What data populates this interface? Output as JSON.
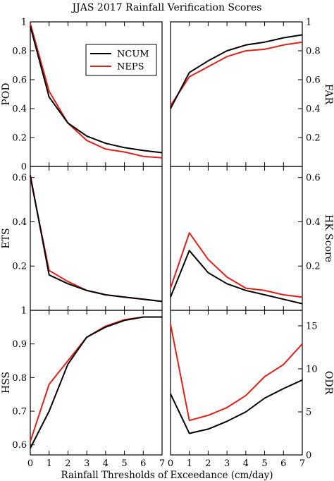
{
  "title": "JJAS 2017 Rainfall Verification Scores",
  "xlabel": "Rainfall Thresholds of Exceedance (cm/day)",
  "x_ticks": [
    "0",
    "1",
    "2",
    "3",
    "4",
    "5",
    "6",
    "7"
  ],
  "legend": {
    "placement": "top-right of POD panel",
    "items": [
      "NCUM",
      "NEPS"
    ]
  },
  "colors": {
    "NCUM": "#000000",
    "NEPS": "#e0201a"
  },
  "chart_data": [
    {
      "type": "line",
      "panel": "POD",
      "ylabel": "POD",
      "x": [
        0,
        1,
        2,
        3,
        4,
        5,
        6,
        7
      ],
      "ylim": [
        0,
        1
      ],
      "y_axis_side": "left",
      "y_ticks": [
        "0",
        "0.2",
        "0.4",
        "0.6",
        "0.8",
        "1"
      ],
      "series": [
        {
          "name": "NCUM",
          "values": [
            0.97,
            0.48,
            0.3,
            0.21,
            0.16,
            0.13,
            0.11,
            0.095
          ]
        },
        {
          "name": "NEPS",
          "values": [
            0.99,
            0.52,
            0.3,
            0.18,
            0.12,
            0.1,
            0.07,
            0.06
          ]
        }
      ]
    },
    {
      "type": "line",
      "panel": "FAR",
      "ylabel": "FAR",
      "x": [
        0,
        1,
        2,
        3,
        4,
        5,
        6,
        7
      ],
      "ylim": [
        0,
        1
      ],
      "y_axis_side": "right",
      "y_ticks": [
        "0.2",
        "0.4",
        "0.6",
        "0.8",
        "1"
      ],
      "series": [
        {
          "name": "NCUM",
          "values": [
            0.4,
            0.65,
            0.73,
            0.8,
            0.84,
            0.86,
            0.89,
            0.91
          ]
        },
        {
          "name": "NEPS",
          "values": [
            0.42,
            0.62,
            0.69,
            0.76,
            0.8,
            0.81,
            0.84,
            0.86
          ]
        }
      ]
    },
    {
      "type": "line",
      "panel": "ETS",
      "ylabel": "ETS",
      "x": [
        0,
        1,
        2,
        3,
        4,
        5,
        6,
        7
      ],
      "ylim": [
        0,
        0.65
      ],
      "y_axis_side": "left",
      "y_ticks": [
        "0.2",
        "0.4",
        "0.6"
      ],
      "series": [
        {
          "name": "NCUM",
          "values": [
            0.61,
            0.16,
            0.12,
            0.09,
            0.07,
            0.06,
            0.05,
            0.04
          ]
        },
        {
          "name": "NEPS",
          "values": [
            0.6,
            0.18,
            0.13,
            0.09,
            0.07,
            0.06,
            0.05,
            0.04
          ]
        }
      ]
    },
    {
      "type": "line",
      "panel": "HK Score",
      "ylabel": "HK Score",
      "x": [
        0,
        1,
        2,
        3,
        4,
        5,
        6,
        7
      ],
      "ylim": [
        0,
        0.65
      ],
      "y_axis_side": "right",
      "y_ticks": [
        "0.2",
        "0.4",
        "0.6"
      ],
      "series": [
        {
          "name": "NCUM",
          "values": [
            0.06,
            0.27,
            0.17,
            0.12,
            0.09,
            0.07,
            0.05,
            0.03
          ]
        },
        {
          "name": "NEPS",
          "values": [
            0.1,
            0.35,
            0.23,
            0.15,
            0.1,
            0.09,
            0.07,
            0.06
          ]
        }
      ]
    },
    {
      "type": "line",
      "panel": "HSS",
      "ylabel": "HSS",
      "x": [
        0,
        1,
        2,
        3,
        4,
        5,
        6,
        7
      ],
      "ylim": [
        0.57,
        1.0
      ],
      "y_axis_side": "left",
      "y_ticks": [
        "0.6",
        "0.7",
        "0.8",
        "0.9",
        "1"
      ],
      "series": [
        {
          "name": "NCUM",
          "values": [
            0.59,
            0.7,
            0.84,
            0.92,
            0.95,
            0.97,
            0.98,
            0.98
          ]
        },
        {
          "name": "NEPS",
          "values": [
            0.61,
            0.78,
            0.85,
            0.92,
            0.953,
            0.972,
            0.98,
            0.98
          ]
        }
      ]
    },
    {
      "type": "line",
      "panel": "ODR",
      "ylabel": "ODR",
      "x": [
        0,
        1,
        2,
        3,
        4,
        5,
        6,
        7
      ],
      "ylim": [
        0,
        16.8
      ],
      "y_axis_side": "right",
      "y_ticks": [
        "0",
        "5",
        "10",
        "15"
      ],
      "series": [
        {
          "name": "NCUM",
          "values": [
            7.1,
            2.5,
            3.0,
            3.9,
            5.0,
            6.6,
            7.7,
            8.7
          ]
        },
        {
          "name": "NEPS",
          "values": [
            15.2,
            4.0,
            4.6,
            5.5,
            6.9,
            9.1,
            10.5,
            12.9
          ]
        }
      ]
    }
  ]
}
